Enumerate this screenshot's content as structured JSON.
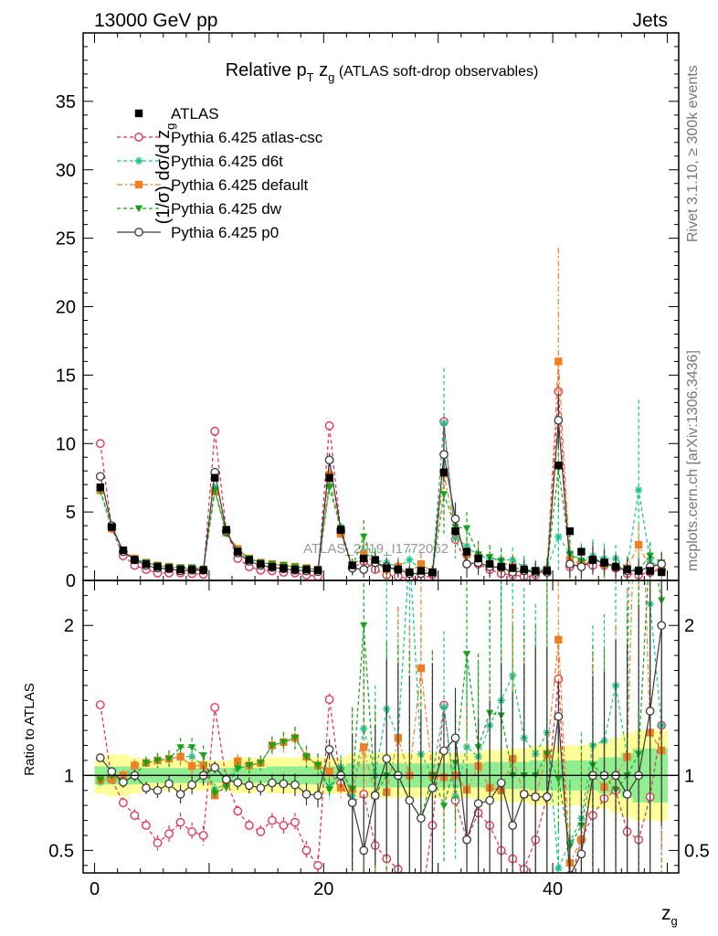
{
  "header": {
    "left": "13000 GeV pp",
    "right": "Jets"
  },
  "side": {
    "rivet": "Rivet 3.1.10, ≥ 300k events",
    "mcplots": "mcplots.cern.ch [arXiv:1306.3436]"
  },
  "chart_data": {
    "type": "scatter",
    "title_main": "Relative p",
    "title_sub": "T",
    "title_zg": " z",
    "title_zg_sub": "g",
    "title_rest": " (ATLAS soft-drop observables)",
    "watermark": "ATLAS_2019_I1772062",
    "ylabel_main": "(1/σ) dσ/d z",
    "ylabel_sub": "g",
    "ratio_ylabel": "Ratio to ATLAS",
    "xlabel_main": "z",
    "xlabel_sub": "g",
    "xlim": [
      -1,
      51
    ],
    "ylim_main": [
      0,
      40
    ],
    "ylim_ratio": [
      0.35,
      2.3
    ],
    "x_ticks": [
      "0",
      "20",
      "40"
    ],
    "y_ticks_main": [
      "0",
      "5",
      "10",
      "15",
      "20",
      "25",
      "30",
      "35"
    ],
    "y_ticks_ratio": [
      "0.5",
      "1",
      "2"
    ],
    "legend_placement": "top-left",
    "x": [
      0.5,
      1.5,
      2.5,
      3.5,
      4.5,
      5.5,
      6.5,
      7.5,
      8.5,
      9.5,
      10.5,
      11.5,
      12.5,
      13.5,
      14.5,
      15.5,
      16.5,
      17.5,
      18.5,
      19.5,
      20.5,
      21.5,
      22.5,
      23.5,
      24.5,
      25.5,
      26.5,
      27.5,
      28.5,
      29.5,
      30.5,
      31.5,
      32.5,
      33.5,
      34.5,
      35.5,
      36.5,
      37.5,
      38.5,
      39.5,
      40.5,
      41.5,
      42.5,
      43.5,
      44.5,
      45.5,
      46.5,
      47.5,
      48.5,
      49.5
    ],
    "series": [
      {
        "name": "ATLAS",
        "color": "#000000",
        "marker": "square",
        "values": [
          6.8,
          3.9,
          2.2,
          1.5,
          1.2,
          1.0,
          0.9,
          0.8,
          0.8,
          0.75,
          7.5,
          3.7,
          2.1,
          1.5,
          1.2,
          1.0,
          0.9,
          0.8,
          0.8,
          0.75,
          7.5,
          3.7,
          1.1,
          1.6,
          1.5,
          0.9,
          0.8,
          0.6,
          0.7,
          0.6,
          7.9,
          3.6,
          2.1,
          1.6,
          1.2,
          1.0,
          0.9,
          0.8,
          0.7,
          0.7,
          8.4,
          3.6,
          2.1,
          1.5,
          1.3,
          1.0,
          0.8,
          0.7,
          0.7,
          0.6
        ],
        "ratio_band_inner": [
          0.06,
          0.06,
          0.06,
          0.06,
          0.05,
          0.05,
          0.05,
          0.05,
          0.05,
          0.05,
          0.05,
          0.05,
          0.05,
          0.05,
          0.05,
          0.06,
          0.06,
          0.06,
          0.06,
          0.06,
          0.06,
          0.06,
          0.08,
          0.08,
          0.08,
          0.08,
          0.08,
          0.08,
          0.08,
          0.08,
          0.08,
          0.08,
          0.08,
          0.08,
          0.09,
          0.09,
          0.09,
          0.09,
          0.1,
          0.1,
          0.1,
          0.1,
          0.1,
          0.1,
          0.12,
          0.12,
          0.15,
          0.18,
          0.18,
          0.18
        ],
        "ratio_band_outer": [
          0.12,
          0.14,
          0.14,
          0.12,
          0.1,
          0.1,
          0.1,
          0.1,
          0.1,
          0.1,
          0.1,
          0.1,
          0.12,
          0.12,
          0.1,
          0.12,
          0.12,
          0.12,
          0.12,
          0.12,
          0.12,
          0.12,
          0.14,
          0.15,
          0.15,
          0.15,
          0.15,
          0.15,
          0.15,
          0.15,
          0.15,
          0.15,
          0.15,
          0.16,
          0.17,
          0.17,
          0.18,
          0.18,
          0.2,
          0.2,
          0.2,
          0.2,
          0.2,
          0.22,
          0.22,
          0.25,
          0.28,
          0.3,
          0.3,
          0.3
        ]
      },
      {
        "name": "Pythia 6.425 atlas-csc",
        "color": "#e8294f",
        "marker": "circle-open",
        "dash": "4,3",
        "values": [
          10.0,
          3.8,
          1.8,
          1.1,
          0.8,
          0.55,
          0.55,
          0.55,
          0.5,
          0.45,
          10.9,
          3.6,
          1.6,
          1.0,
          0.75,
          0.7,
          0.6,
          0.55,
          0.4,
          0.3,
          11.3,
          3.5,
          0.9,
          1.4,
          0.8,
          0.4,
          0.3,
          0.1,
          0.1,
          0.4,
          11.6,
          3.0,
          1.2,
          1.2,
          0.8,
          0.5,
          0.4,
          0.3,
          0.4,
          0.6,
          13.8,
          1.0,
          1.2,
          1.1,
          1.1,
          0.9,
          0.5,
          0.4,
          0.6,
          0.8
        ],
        "err": [
          0.15,
          0.12,
          0.08,
          0.06,
          0.05,
          0.05,
          0.05,
          0.05,
          0.05,
          0.05,
          0.2,
          0.1,
          0.08,
          0.06,
          0.05,
          0.05,
          0.05,
          0.05,
          0.05,
          0.05,
          0.3,
          0.15,
          0.3,
          0.5,
          0.4,
          0.3,
          0.3,
          0.3,
          0.3,
          0.3,
          0.5,
          0.5,
          0.4,
          0.4,
          0.4,
          0.4,
          0.4,
          0.4,
          0.4,
          0.4,
          1.5,
          0.8,
          0.6,
          0.5,
          0.5,
          0.5,
          0.5,
          0.5,
          0.5,
          0.5
        ]
      },
      {
        "name": "Pythia 6.425 d6t",
        "color": "#16c48a",
        "marker": "star",
        "dash": "4,3",
        "values": [
          6.5,
          3.8,
          2.1,
          1.6,
          1.3,
          1.1,
          1.0,
          0.9,
          0.9,
          0.8,
          6.8,
          3.5,
          2.2,
          1.6,
          1.3,
          1.2,
          1.1,
          1.0,
          0.9,
          0.8,
          6.9,
          3.9,
          0.95,
          2.1,
          1.5,
          1.3,
          1.0,
          1.5,
          0.8,
          0.6,
          11.5,
          3.1,
          2.5,
          1.8,
          1.6,
          1.5,
          1.5,
          1.0,
          0.8,
          0.9,
          3.2,
          2.0,
          1.5,
          1.8,
          1.6,
          1.6,
          0.9,
          6.6,
          1.5,
          0.8
        ],
        "err": [
          0.15,
          0.1,
          0.08,
          0.06,
          0.05,
          0.05,
          0.05,
          0.05,
          0.05,
          0.05,
          0.3,
          0.15,
          0.1,
          0.08,
          0.06,
          0.06,
          0.06,
          0.06,
          0.06,
          0.06,
          0.5,
          0.3,
          0.6,
          1.0,
          0.9,
          0.8,
          0.7,
          0.8,
          0.6,
          0.5,
          4.0,
          1.5,
          1.2,
          1.0,
          0.9,
          0.9,
          0.9,
          0.8,
          0.7,
          0.8,
          2.5,
          1.5,
          1.2,
          1.2,
          1.1,
          1.0,
          0.9,
          6.6,
          1.2,
          0.8
        ]
      },
      {
        "name": "Pythia 6.425 default",
        "color": "#f07f22",
        "marker": "square",
        "dash": "6,3,2,3",
        "values": [
          6.6,
          3.8,
          2.2,
          1.6,
          1.3,
          1.1,
          1.0,
          0.9,
          0.85,
          0.8,
          6.5,
          3.5,
          2.3,
          1.6,
          1.3,
          1.2,
          1.1,
          1.0,
          0.9,
          0.8,
          7.7,
          3.4,
          1.0,
          1.9,
          1.3,
          0.8,
          1.0,
          0.6,
          1.2,
          0.6,
          7.8,
          3.6,
          1.9,
          1.7,
          1.1,
          0.9,
          1.0,
          0.7,
          0.6,
          0.8,
          16.0,
          1.5,
          1.2,
          1.5,
          1.2,
          1.0,
          0.9,
          2.6,
          0.9,
          0.7
        ],
        "err": [
          0.15,
          0.1,
          0.08,
          0.06,
          0.05,
          0.05,
          0.05,
          0.05,
          0.05,
          0.05,
          0.3,
          0.15,
          0.1,
          0.08,
          0.06,
          0.06,
          0.06,
          0.06,
          0.06,
          0.06,
          0.5,
          0.3,
          0.6,
          1.0,
          0.8,
          0.7,
          0.7,
          0.6,
          0.8,
          0.5,
          3.0,
          1.5,
          1.2,
          1.0,
          0.9,
          0.9,
          0.9,
          0.8,
          0.7,
          0.8,
          8.3,
          1.5,
          1.2,
          1.2,
          1.1,
          1.0,
          0.9,
          1.5,
          0.9,
          0.8
        ]
      },
      {
        "name": "Pythia 6.425 dw",
        "color": "#18a318",
        "marker": "triangle-down",
        "dash": "4,3",
        "values": [
          6.6,
          3.9,
          2.1,
          1.5,
          1.3,
          1.1,
          1.0,
          0.95,
          0.95,
          0.85,
          6.6,
          3.4,
          2.2,
          1.6,
          1.3,
          1.2,
          1.1,
          1.0,
          0.9,
          0.8,
          6.8,
          3.8,
          1.0,
          3.2,
          1.3,
          0.9,
          0.8,
          0.5,
          0.5,
          0.6,
          6.3,
          3.9,
          3.8,
          1.9,
          1.7,
          1.4,
          0.9,
          0.8,
          0.7,
          0.8,
          8.2,
          1.9,
          1.4,
          1.6,
          1.3,
          0.9,
          0.8,
          0.8,
          1.8,
          1.3
        ],
        "err": [
          0.15,
          0.1,
          0.08,
          0.06,
          0.05,
          0.05,
          0.05,
          0.05,
          0.05,
          0.05,
          0.3,
          0.15,
          0.1,
          0.08,
          0.06,
          0.06,
          0.06,
          0.06,
          0.06,
          0.06,
          0.5,
          0.3,
          0.6,
          1.2,
          0.9,
          0.8,
          0.7,
          0.6,
          0.6,
          0.5,
          3.0,
          1.5,
          1.2,
          1.0,
          0.9,
          0.9,
          0.9,
          0.8,
          0.7,
          0.8,
          3.0,
          1.5,
          1.2,
          1.2,
          1.1,
          1.0,
          0.9,
          0.9,
          1.0,
          0.8
        ]
      },
      {
        "name": "Pythia 6.425 p0",
        "color": "#3a3a3a",
        "marker": "circle-open",
        "dash": "",
        "values": [
          7.6,
          4.0,
          2.1,
          1.5,
          1.1,
          0.9,
          0.85,
          0.7,
          0.75,
          0.75,
          7.9,
          3.6,
          2.0,
          1.4,
          1.1,
          0.95,
          0.85,
          0.75,
          0.7,
          0.65,
          8.8,
          3.7,
          0.9,
          0.8,
          1.3,
          1.0,
          0.8,
          0.5,
          0.5,
          0.55,
          9.2,
          4.5,
          1.2,
          1.3,
          1.0,
          0.95,
          0.6,
          0.7,
          0.6,
          0.6,
          11.7,
          1.2,
          1.0,
          1.5,
          1.3,
          1.0,
          0.7,
          0.7,
          1.0,
          1.2
        ],
        "err": [
          0.15,
          0.1,
          0.08,
          0.06,
          0.05,
          0.05,
          0.05,
          0.05,
          0.05,
          0.05,
          0.3,
          0.15,
          0.1,
          0.08,
          0.06,
          0.06,
          0.06,
          0.06,
          0.06,
          0.06,
          0.5,
          0.3,
          0.5,
          0.6,
          0.7,
          0.6,
          0.6,
          0.5,
          0.5,
          0.5,
          2.0,
          1.2,
          1.0,
          0.9,
          0.8,
          0.8,
          0.8,
          0.7,
          0.7,
          0.7,
          2.0,
          1.0,
          0.9,
          1.0,
          0.9,
          0.9,
          0.8,
          0.8,
          0.8,
          0.8
        ]
      }
    ]
  }
}
